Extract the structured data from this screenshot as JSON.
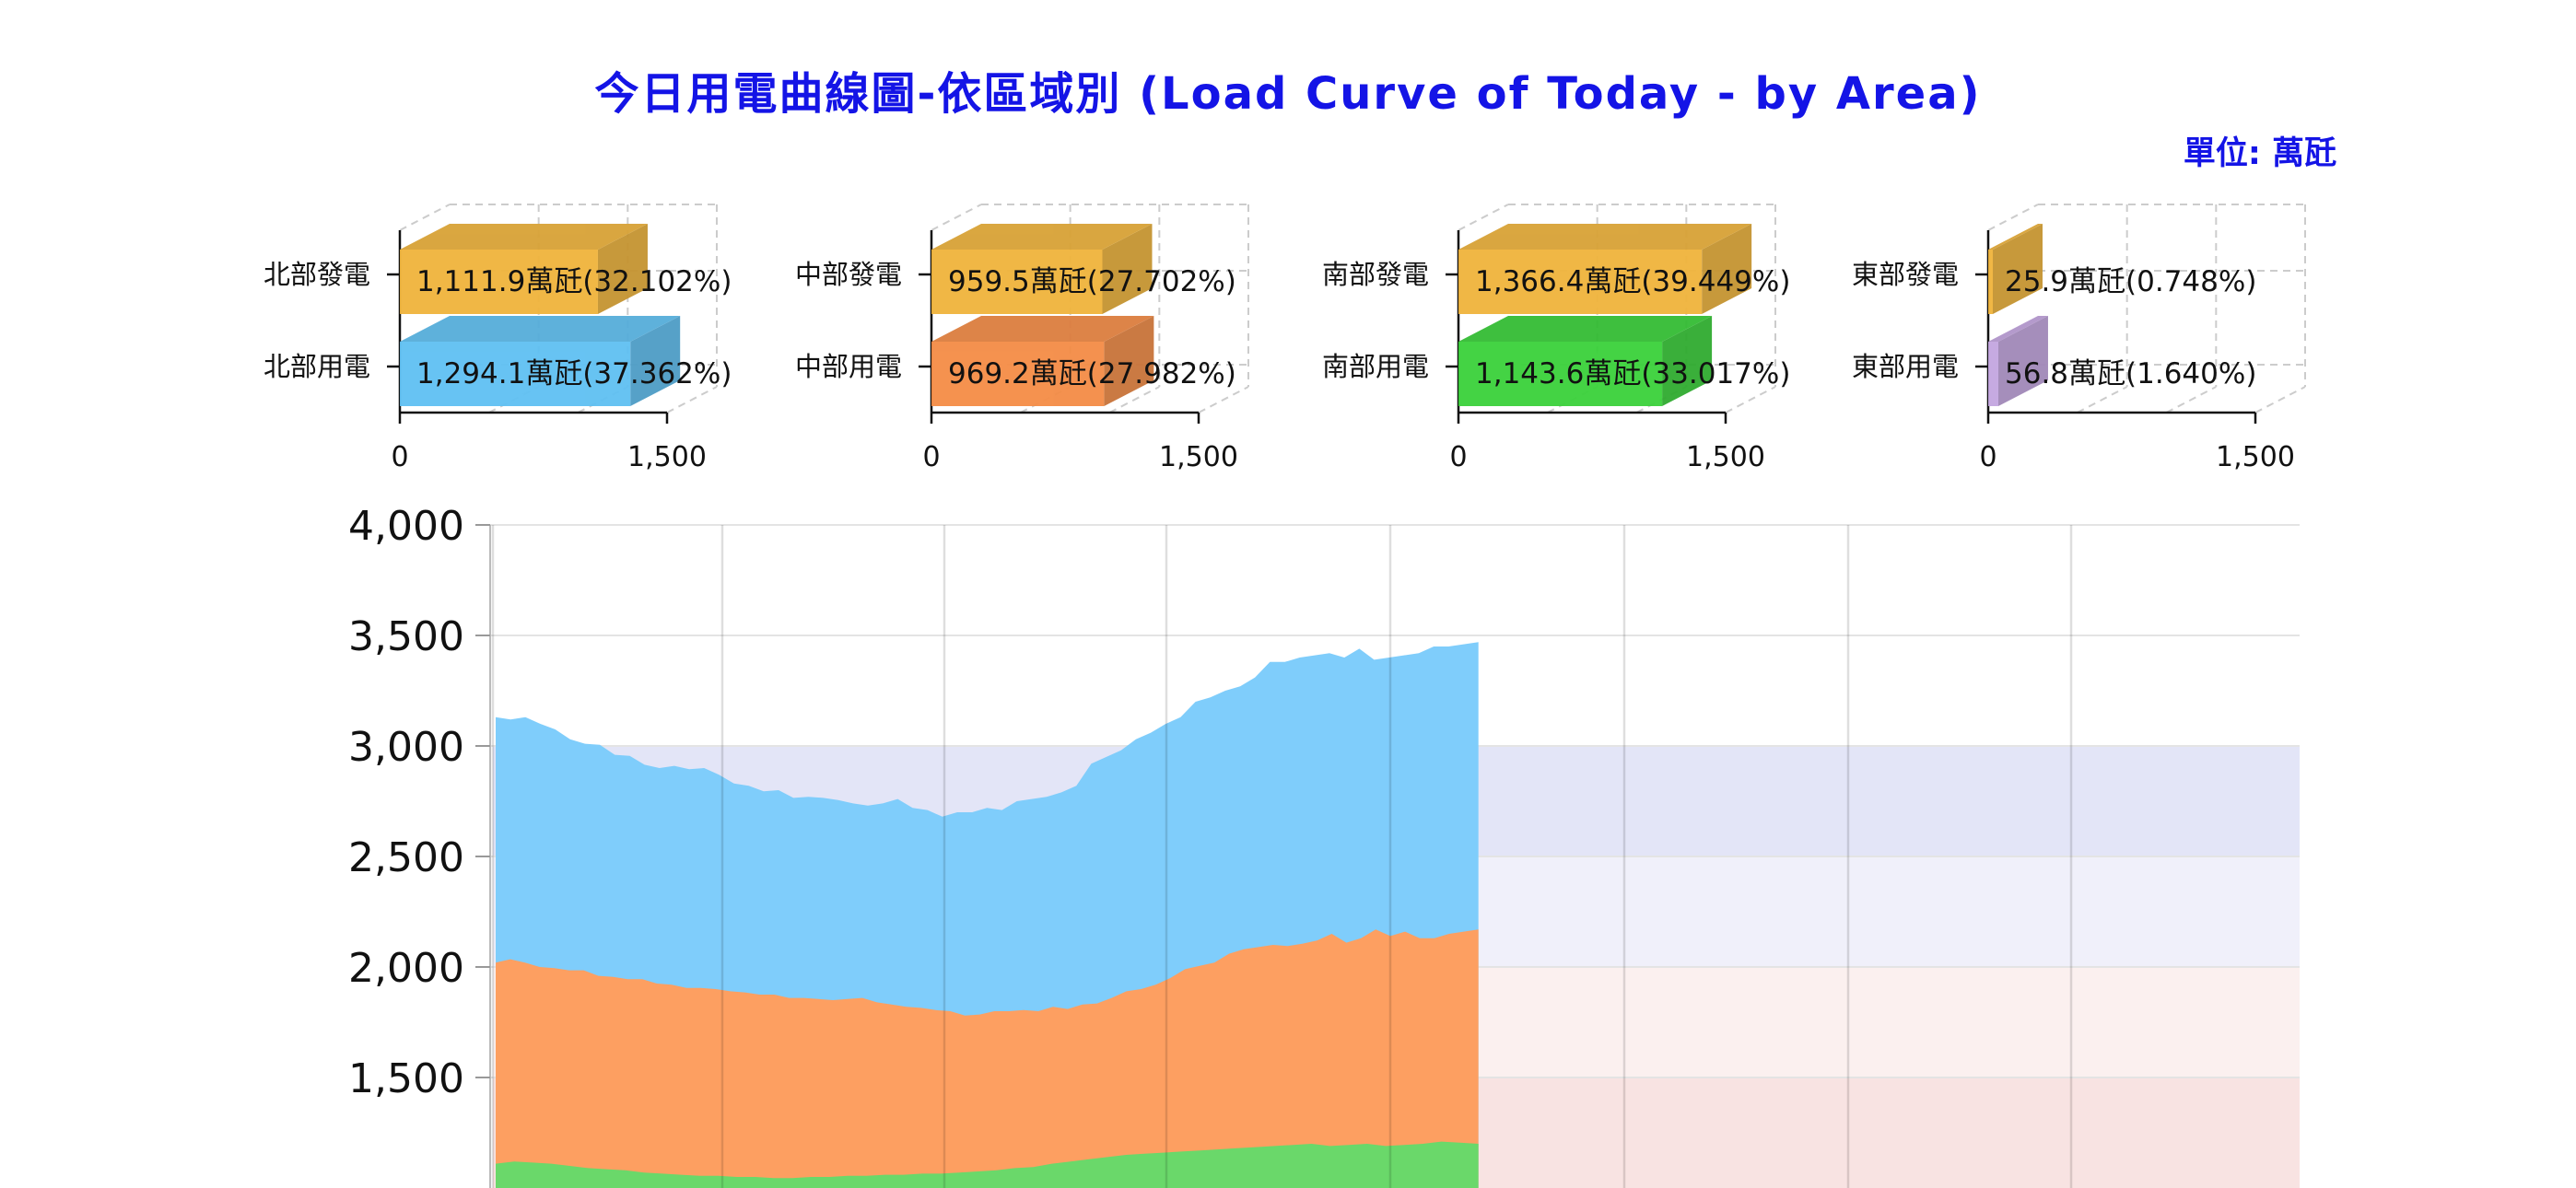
{
  "title": "今日用電曲線圖-依區域別 (Load Curve of Today - by Area)",
  "unit": "單位: 萬瓩",
  "colors": {
    "north_gen": "#f0b43c",
    "north_use": "#5fc0f2",
    "central_gen": "#f0b43c",
    "central_use": "#f48c46",
    "south_gen": "#f0b43c",
    "south_use": "#3ad13a",
    "east_gen": "#f0b43c",
    "east_use": "#c4a6e0",
    "area_top": "#7fcdfb",
    "area_middle": "#fd9f61",
    "area_bottom": "#6ad86a",
    "band_1": "#e3e5f7",
    "band_2": "#f0f0fa",
    "band_3": "#fbf0ef",
    "band_4": "#f8e3e2"
  },
  "chart_data": [
    {
      "type": "bar",
      "panel": "north",
      "categories": [
        "北部發電",
        "北部用電"
      ],
      "values": [
        1111.9,
        1294.1
      ],
      "labels": [
        "1,111.9萬瓩(32.102%)",
        "1,294.1萬瓩(37.362%)"
      ],
      "xlim": [
        0,
        1500
      ],
      "xticks": [
        "0",
        "1,500"
      ]
    },
    {
      "type": "bar",
      "panel": "central",
      "categories": [
        "中部發電",
        "中部用電"
      ],
      "values": [
        959.5,
        969.2
      ],
      "labels": [
        "959.5萬瓩(27.702%)",
        "969.2萬瓩(27.982%)"
      ],
      "xlim": [
        0,
        1500
      ],
      "xticks": [
        "0",
        "1,500"
      ]
    },
    {
      "type": "bar",
      "panel": "south",
      "categories": [
        "南部發電",
        "南部用電"
      ],
      "values": [
        1366.4,
        1143.6
      ],
      "labels": [
        "1,366.4萬瓩(39.449%)",
        "1,143.6萬瓩(33.017%)"
      ],
      "xlim": [
        0,
        1500
      ],
      "xticks": [
        "0",
        "1,500"
      ]
    },
    {
      "type": "bar",
      "panel": "east",
      "categories": [
        "東部發電",
        "東部用電"
      ],
      "values": [
        25.9,
        56.8
      ],
      "labels": [
        "25.9萬瓩(0.748%)",
        "56.8萬瓩(1.640%)"
      ],
      "xlim": [
        0,
        1500
      ],
      "xticks": [
        "0",
        "1,500"
      ]
    },
    {
      "type": "area",
      "ylim": [
        1000,
        4000
      ],
      "yticks": [
        "1,500",
        "2,000",
        "2,500",
        "3,000",
        "3,500",
        "4,000"
      ],
      "x_fraction_with_data": 0.545,
      "series": [
        {
          "values": [
            1110,
            1120,
            1115,
            1110,
            1100,
            1090,
            1085,
            1080,
            1070,
            1065,
            1060,
            1055,
            1055,
            1050,
            1050,
            1045,
            1045,
            1050,
            1050,
            1055,
            1055,
            1060,
            1060,
            1065,
            1065,
            1070,
            1075,
            1080,
            1090,
            1095,
            1110,
            1120,
            1130,
            1140,
            1150,
            1155,
            1160,
            1165,
            1170,
            1175,
            1180,
            1185,
            1190,
            1195,
            1200,
            1190,
            1195,
            1200,
            1190,
            1195,
            1200,
            1210,
            1205,
            1200
          ]
        },
        {
          "values": [
            2020,
            2035,
            2020,
            2000,
            1995,
            1985,
            1985,
            1960,
            1955,
            1945,
            1945,
            1925,
            1920,
            1905,
            1905,
            1900,
            1890,
            1885,
            1875,
            1875,
            1860,
            1860,
            1855,
            1850,
            1855,
            1860,
            1840,
            1830,
            1820,
            1815,
            1805,
            1800,
            1780,
            1785,
            1800,
            1800,
            1805,
            1800,
            1820,
            1810,
            1830,
            1835,
            1860,
            1890,
            1900,
            1920,
            1950,
            1990,
            2005,
            2020,
            2060,
            2080,
            2090,
            2100,
            2095,
            2105,
            2120,
            2150,
            2110,
            2130,
            2170,
            2140,
            2160,
            2130,
            2130,
            2150,
            2160,
            2170
          ]
        },
        {
          "values": [
            3130,
            3120,
            3130,
            3100,
            3075,
            3030,
            3010,
            3005,
            2960,
            2955,
            2915,
            2900,
            2910,
            2895,
            2900,
            2870,
            2830,
            2820,
            2795,
            2800,
            2765,
            2770,
            2765,
            2755,
            2740,
            2730,
            2740,
            2760,
            2720,
            2710,
            2680,
            2700,
            2700,
            2720,
            2710,
            2750,
            2760,
            2770,
            2790,
            2820,
            2920,
            2950,
            2980,
            3030,
            3060,
            3100,
            3130,
            3200,
            3220,
            3250,
            3270,
            3310,
            3380,
            3380,
            3400,
            3410,
            3420,
            3400,
            3440,
            3390,
            3400,
            3410,
            3420,
            3450,
            3450,
            3460,
            3470
          ]
        }
      ]
    }
  ]
}
